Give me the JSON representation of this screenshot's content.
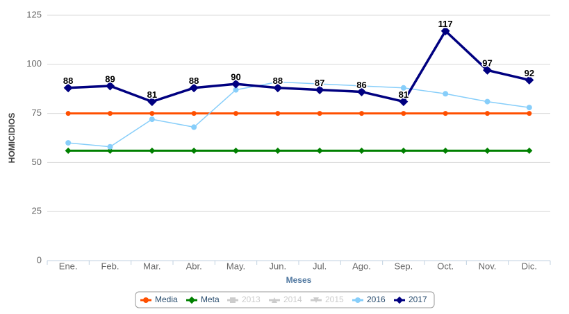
{
  "chart_data": {
    "type": "line",
    "x_label": "Meses",
    "y_label": "HOMICIDIOS",
    "categories": [
      "Ene.",
      "Feb.",
      "Mar.",
      "Abr.",
      "May.",
      "Jun.",
      "Jul.",
      "Ago.",
      "Sep.",
      "Oct.",
      "Nov.",
      "Dic."
    ],
    "ylim": [
      0,
      125
    ],
    "yticks": [
      0,
      25,
      50,
      75,
      100,
      125
    ],
    "grid": true,
    "legend": "bottom",
    "series": [
      {
        "name": "Media",
        "color": "#ff4f00",
        "marker": "circle",
        "visible": true,
        "values": [
          75,
          75,
          75,
          75,
          75,
          75,
          75,
          75,
          75,
          75,
          75,
          75
        ]
      },
      {
        "name": "Meta",
        "color": "#008000",
        "marker": "diamond",
        "visible": true,
        "values": [
          56,
          56,
          56,
          56,
          56,
          56,
          56,
          56,
          56,
          56,
          56,
          56
        ]
      },
      {
        "name": "2013",
        "color": "#cccccc",
        "marker": "square",
        "visible": false,
        "values": [
          null,
          null,
          null,
          null,
          null,
          null,
          null,
          null,
          null,
          null,
          null,
          null
        ]
      },
      {
        "name": "2014",
        "color": "#cccccc",
        "marker": "triangle",
        "visible": false,
        "values": [
          null,
          null,
          null,
          null,
          null,
          null,
          null,
          null,
          null,
          null,
          null,
          null
        ]
      },
      {
        "name": "2015",
        "color": "#cccccc",
        "marker": "triangle-down",
        "visible": false,
        "values": [
          null,
          null,
          null,
          null,
          null,
          null,
          null,
          null,
          null,
          null,
          null,
          null
        ]
      },
      {
        "name": "2016",
        "color": "#87cefa",
        "marker": "circle",
        "visible": true,
        "values": [
          60,
          58,
          72,
          68,
          87,
          91,
          90,
          89,
          88,
          85,
          81,
          78
        ]
      },
      {
        "name": "2017",
        "color": "#000080",
        "marker": "diamond",
        "visible": true,
        "data_labels": true,
        "values": [
          88,
          89,
          81,
          88,
          90,
          88,
          87,
          86,
          81,
          117,
          97,
          92
        ]
      }
    ]
  }
}
